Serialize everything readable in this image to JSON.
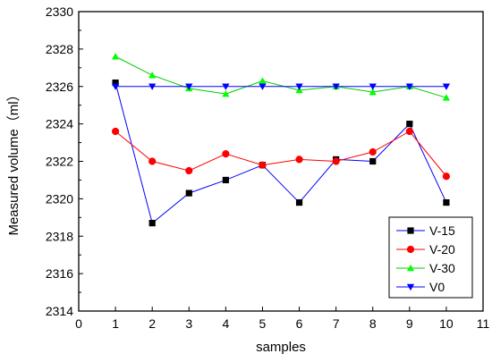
{
  "chart_data": {
    "type": "line",
    "xlabel": "samples",
    "ylabel": "Measured volume（ml）",
    "xlim": [
      0,
      11
    ],
    "ylim": [
      2314,
      2330
    ],
    "xticks": [
      0,
      1,
      2,
      3,
      4,
      5,
      6,
      7,
      8,
      9,
      10,
      11
    ],
    "yticks": [
      2314,
      2316,
      2318,
      2320,
      2322,
      2324,
      2326,
      2328,
      2330
    ],
    "grid": false,
    "legend_position": "bottom-right",
    "x": [
      1,
      2,
      3,
      4,
      5,
      6,
      7,
      8,
      9,
      10
    ],
    "series": [
      {
        "name": "V-15",
        "color": "#0000ff",
        "marker": "square",
        "marker_color": "#000000",
        "values": [
          2326.2,
          2318.7,
          2320.3,
          2321.0,
          2321.8,
          2319.8,
          2322.1,
          2322.0,
          2324.0,
          2319.8
        ]
      },
      {
        "name": "V-20",
        "color": "#ff0000",
        "marker": "circle",
        "marker_color": "#ff0000",
        "values": [
          2323.6,
          2322.0,
          2321.5,
          2322.4,
          2321.8,
          2322.1,
          2322.0,
          2322.5,
          2323.6,
          2321.2
        ]
      },
      {
        "name": "V-30",
        "color": "#00cc00",
        "marker": "triangle-up",
        "marker_color": "#00ff00",
        "values": [
          2327.6,
          2326.6,
          2325.9,
          2325.6,
          2326.3,
          2325.8,
          2326.0,
          2325.7,
          2326.0,
          2325.4
        ]
      },
      {
        "name": "V0",
        "color": "#0000ff",
        "marker": "triangle-down",
        "marker_color": "#0000ff",
        "values": [
          2326.0,
          2326.0,
          2326.0,
          2326.0,
          2326.0,
          2326.0,
          2326.0,
          2326.0,
          2326.0,
          2326.0
        ]
      }
    ]
  }
}
